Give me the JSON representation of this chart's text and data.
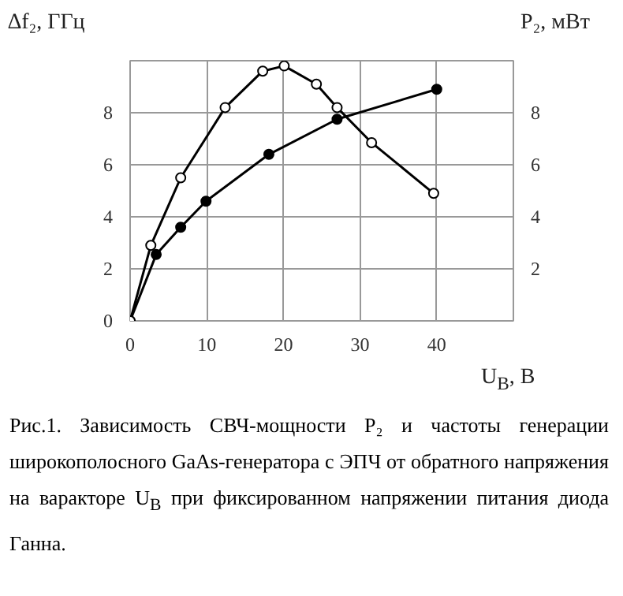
{
  "chart_data": {
    "type": "line",
    "xlabel": "U$_{В}$, В",
    "ylabel": "∆f₂, ГГц",
    "y2label": "P₂, мВт",
    "xlim": [
      0,
      50
    ],
    "xticks": [
      0,
      10,
      20,
      30,
      40
    ],
    "ylim": [
      0,
      10
    ],
    "yticks": [
      0,
      2,
      4,
      6,
      8
    ],
    "y2lim": [
      0,
      10
    ],
    "y2ticks": [
      2,
      4,
      6,
      8
    ],
    "grid": true,
    "marker": "circle",
    "series": [
      {
        "color": "#000000",
        "x": [
          0,
          3.4,
          6.6,
          9.9,
          18.1,
          27.0,
          40.0
        ],
        "values": [
          0,
          2.55,
          3.6,
          4.6,
          6.4,
          7.75,
          8.9
        ]
      },
      {
        "color": "#000000",
        "axis": "y2",
        "x": [
          0,
          2.7,
          6.6,
          12.4,
          17.3,
          20.1,
          24.3,
          27.0,
          31.5,
          39.6
        ],
        "values": [
          0,
          2.9,
          5.5,
          8.2,
          9.6,
          9.8,
          9.1,
          8.2,
          6.85,
          4.9
        ]
      }
    ],
    "annotations": [
      "Рис.1. Зависимость СВЧ-мощности P₂ и частоты генерации широкополосного GaAs-генератора с ЭПЧ от обратного напряжения на варакторе U$_{В}$ при фиксированном напряжении питания диода Ганна."
    ]
  }
}
